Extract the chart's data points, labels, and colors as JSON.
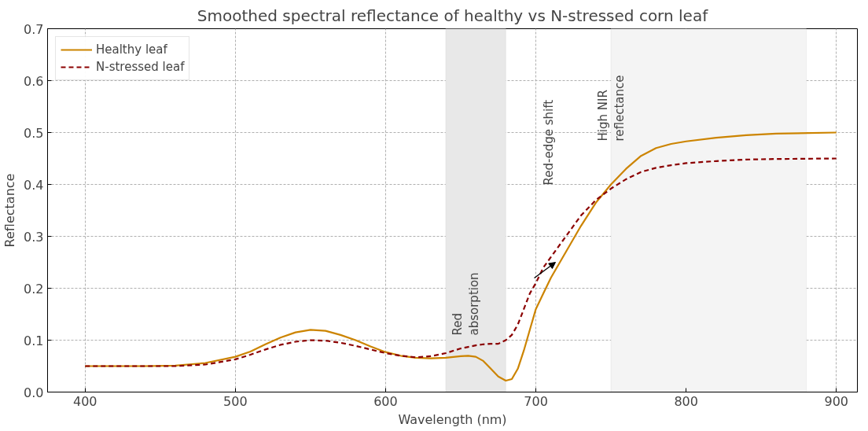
{
  "chart_data": {
    "type": "line",
    "title": "Smoothed spectral reflectance of healthy vs N-stressed corn leaf",
    "xlabel": "Wavelength (nm)",
    "ylabel": "Reflectance",
    "xlim": [
      375,
      914
    ],
    "ylim": [
      0,
      0.7
    ],
    "xticks": [
      400,
      500,
      600,
      700,
      800,
      900
    ],
    "yticks": [
      {
        "value": 0,
        "label": "0.0"
      },
      0.1,
      0.2,
      0.3,
      0.4,
      0.5,
      0.6,
      0.7
    ],
    "grid": true,
    "legend": "top left",
    "x": [
      400,
      440,
      460,
      480,
      500,
      510,
      520,
      530,
      540,
      550,
      560,
      570,
      580,
      590,
      600,
      610,
      620,
      630,
      640,
      650,
      655,
      660,
      665,
      670,
      675,
      680,
      684,
      688,
      692,
      696,
      700,
      705,
      710,
      715,
      720,
      730,
      740,
      750,
      760,
      770,
      780,
      790,
      800,
      820,
      840,
      860,
      900
    ],
    "series": [
      {
        "name": "Healthy leaf",
        "color": "#cc8400",
        "line_style": "solid",
        "values": [
          0.05,
          0.05,
          0.051,
          0.056,
          0.068,
          0.078,
          0.092,
          0.105,
          0.115,
          0.12,
          0.118,
          0.11,
          0.1,
          0.088,
          0.077,
          0.07,
          0.066,
          0.065,
          0.066,
          0.069,
          0.07,
          0.068,
          0.06,
          0.045,
          0.03,
          0.022,
          0.025,
          0.045,
          0.08,
          0.12,
          0.16,
          0.19,
          0.22,
          0.245,
          0.27,
          0.32,
          0.365,
          0.4,
          0.43,
          0.455,
          0.47,
          0.478,
          0.483,
          0.49,
          0.495,
          0.498,
          0.5
        ]
      },
      {
        "name": "N-stressed leaf",
        "color": "#8b0000",
        "line_style": "dashed",
        "values": [
          0.05,
          0.05,
          0.05,
          0.053,
          0.063,
          0.072,
          0.082,
          0.091,
          0.097,
          0.1,
          0.099,
          0.095,
          0.089,
          0.082,
          0.075,
          0.07,
          0.067,
          0.069,
          0.075,
          0.084,
          0.087,
          0.09,
          0.092,
          0.093,
          0.093,
          0.1,
          0.11,
          0.13,
          0.16,
          0.19,
          0.21,
          0.24,
          0.26,
          0.28,
          0.3,
          0.34,
          0.37,
          0.392,
          0.41,
          0.424,
          0.432,
          0.437,
          0.441,
          0.445,
          0.448,
          0.449,
          0.45
        ]
      }
    ],
    "bands": [
      {
        "axis": "x",
        "from": 640,
        "to": 680,
        "color": "#e8e8e8"
      },
      {
        "axis": "x",
        "from": 750,
        "to": 880,
        "color": "#f4f4f4"
      }
    ],
    "annotations": [
      "Red\nabsorption",
      "Red-edge shift",
      "High NIR\nreflectance"
    ]
  }
}
